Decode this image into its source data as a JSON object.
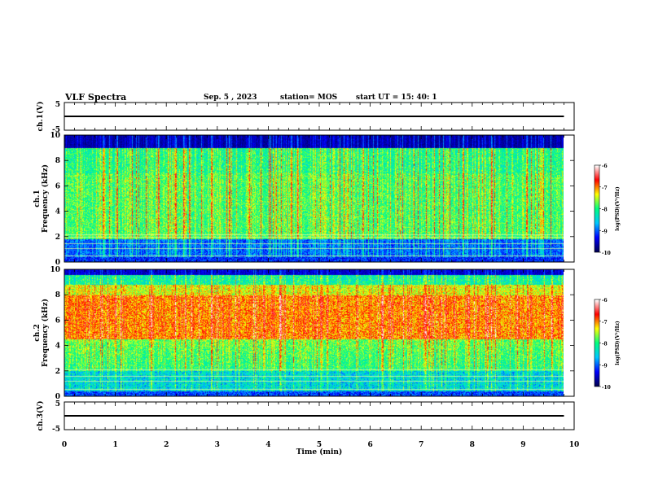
{
  "header": {
    "title": "VLF Spectra",
    "date": "Sep. 5 , 2023",
    "station": "station= MOS",
    "start": "start UT = 15: 40: 1"
  },
  "chart_data": [
    {
      "type": "line",
      "panel": "ch1-waveform",
      "ylabel": "ch.1(V)",
      "ylim": [
        -5,
        5
      ],
      "yticks": [
        "5",
        "-5"
      ],
      "xlim": [
        0,
        10
      ],
      "series": [
        {
          "x": [
            0,
            9.8
          ],
          "y": [
            0,
            0
          ]
        }
      ],
      "color": "#000000"
    },
    {
      "type": "heatmap",
      "panel": "ch1-spectrogram",
      "ylabel_line1": "ch.1",
      "ylabel_line2": "Frequency (kHz)",
      "ylim": [
        0,
        10
      ],
      "yticks": [
        "0",
        "2",
        "4",
        "6",
        "8",
        "10"
      ],
      "xlim": [
        0,
        10
      ],
      "data_end_min": 9.8,
      "colorbar": {
        "min": -10,
        "max": -6,
        "ticks": [
          "-6",
          "-7",
          "-8",
          "-9",
          "-10"
        ],
        "label": "log(PSD)(V²/Hz)"
      }
    },
    {
      "type": "heatmap",
      "panel": "ch2-spectrogram",
      "ylabel_line1": "ch.2",
      "ylabel_line2": "Frequency (kHz)",
      "ylim": [
        0,
        10
      ],
      "yticks": [
        "0",
        "2",
        "4",
        "6",
        "8",
        "10"
      ],
      "xlim": [
        0,
        10
      ],
      "data_end_min": 9.8,
      "colorbar": {
        "min": -10,
        "max": -6,
        "ticks": [
          "-6",
          "-7",
          "-8",
          "-9",
          "-10"
        ],
        "label": "log(PSD)(V²/Hz)"
      }
    },
    {
      "type": "line",
      "panel": "ch3-waveform",
      "ylabel": "ch.3(V)",
      "ylim": [
        -5,
        5
      ],
      "yticks": [
        "5",
        "-5"
      ],
      "xlim": [
        0,
        10
      ],
      "series": [
        {
          "x": [
            0,
            9.8
          ],
          "y": [
            0,
            0
          ]
        }
      ],
      "color": "#000000"
    }
  ],
  "xaxis": {
    "label": "Time (min)",
    "ticks": [
      "0",
      "1",
      "2",
      "3",
      "4",
      "5",
      "6",
      "7",
      "8",
      "9",
      "10"
    ]
  },
  "colormap": [
    "#000050",
    "#0000ff",
    "#00c8ff",
    "#00ff80",
    "#ffff00",
    "#ff0000",
    "#ffffff"
  ]
}
